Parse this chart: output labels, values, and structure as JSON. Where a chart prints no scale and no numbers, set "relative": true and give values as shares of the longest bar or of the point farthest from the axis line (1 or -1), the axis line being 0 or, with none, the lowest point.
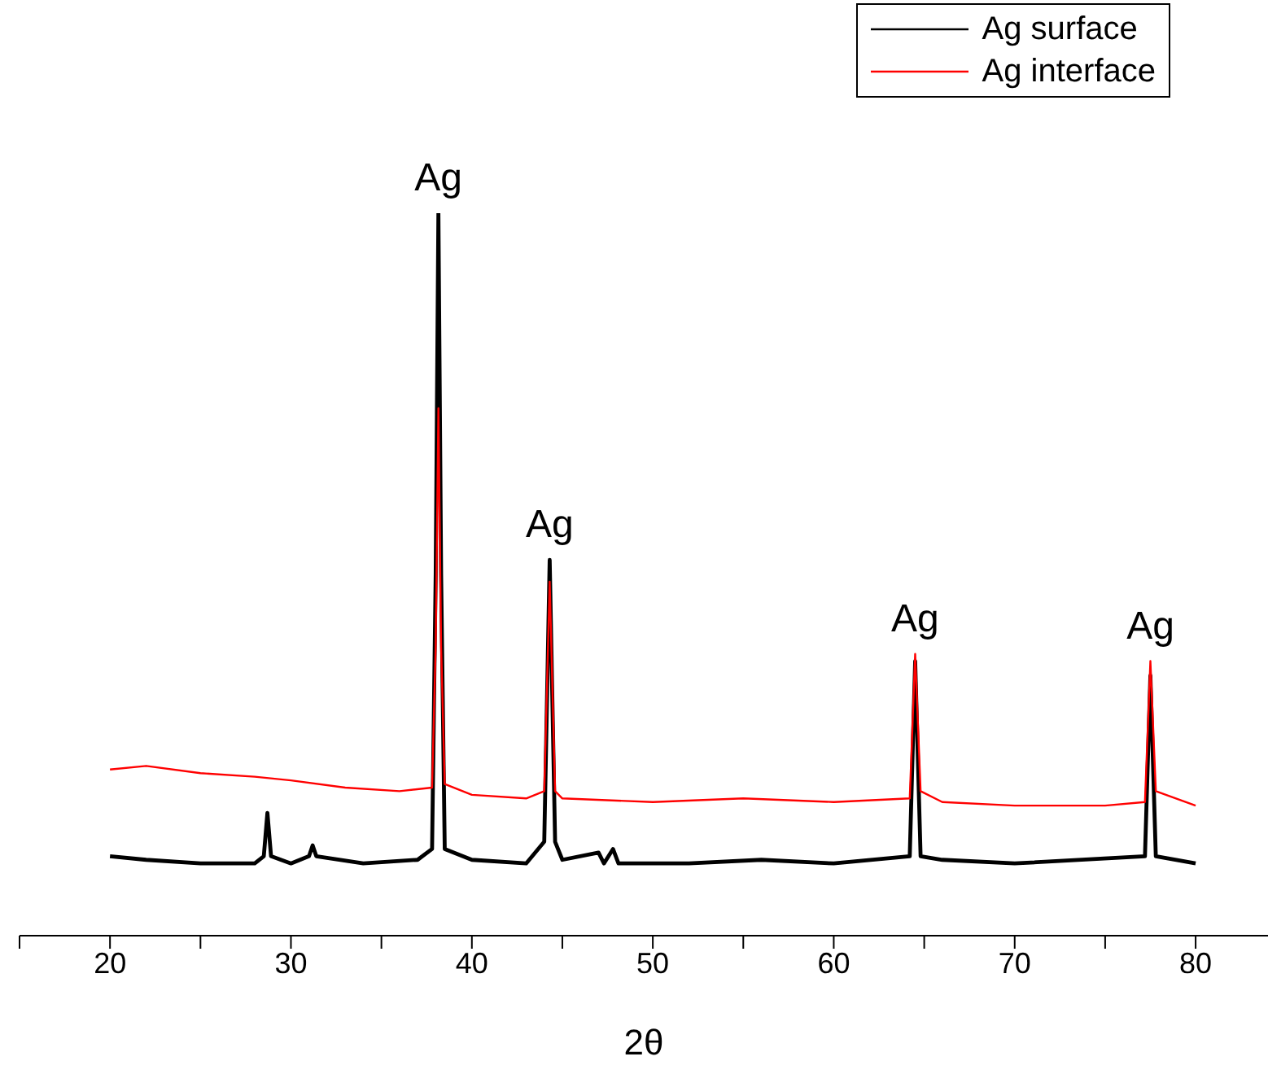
{
  "chart_data": {
    "type": "line",
    "xlabel": "2θ",
    "relative": true,
    "xlim": [
      15,
      84
    ],
    "xticks": [
      {
        "value": 15,
        "label": null
      },
      20,
      {
        "value": 25,
        "label": null
      },
      30,
      {
        "value": 35,
        "label": null
      },
      40,
      {
        "value": 45,
        "label": null
      },
      50,
      {
        "value": 55,
        "label": null
      },
      60,
      {
        "value": 65,
        "label": null
      },
      70,
      {
        "value": 75,
        "label": null
      },
      80
    ],
    "legend": "top right",
    "line_style": "solid",
    "series": [
      {
        "name": "Ag surface",
        "color": "#000000",
        "x": [
          20,
          22,
          25,
          28,
          28.5,
          28.7,
          28.9,
          30,
          31,
          31.2,
          31.4,
          34,
          37,
          37.8,
          38,
          38.15,
          38.3,
          38.5,
          40,
          43,
          44,
          44.3,
          44.6,
          45,
          47,
          47.3,
          47.8,
          48.1,
          52,
          56,
          60,
          64.2,
          64.5,
          64.8,
          66,
          70,
          77.2,
          77.5,
          77.8,
          80
        ],
        "values": [
          0.11,
          0.105,
          0.1,
          0.1,
          0.11,
          0.17,
          0.11,
          0.1,
          0.11,
          0.125,
          0.11,
          0.1,
          0.105,
          0.12,
          0.5,
          1,
          0.5,
          0.12,
          0.105,
          0.1,
          0.13,
          0.52,
          0.13,
          0.105,
          0.115,
          0.1,
          0.12,
          0.1,
          0.1,
          0.105,
          0.1,
          0.11,
          0.38,
          0.11,
          0.105,
          0.1,
          0.11,
          0.36,
          0.11,
          0.1
        ]
      },
      {
        "name": "Ag interface",
        "color": "#ff0000",
        "x": [
          20,
          22,
          25,
          28,
          30,
          33,
          36,
          37.8,
          38,
          38.15,
          38.3,
          38.5,
          40,
          43,
          44,
          44.3,
          44.6,
          45,
          50,
          55,
          60,
          64.2,
          64.5,
          64.8,
          66,
          70,
          75,
          77.2,
          77.5,
          77.8,
          80
        ],
        "values": [
          0.23,
          0.235,
          0.225,
          0.22,
          0.215,
          0.205,
          0.2,
          0.205,
          0.4,
          0.73,
          0.4,
          0.21,
          0.195,
          0.19,
          0.2,
          0.49,
          0.2,
          0.19,
          0.185,
          0.19,
          0.185,
          0.19,
          0.39,
          0.2,
          0.185,
          0.18,
          0.18,
          0.185,
          0.38,
          0.2,
          0.18
        ]
      }
    ],
    "annotations": [
      {
        "text": "Ag",
        "x": 38.15,
        "y": 1
      },
      {
        "text": "Ag",
        "x": 44.3,
        "y": 0.52
      },
      {
        "text": "Ag",
        "x": 64.5,
        "y": 0.39
      },
      {
        "text": "Ag",
        "x": 77.5,
        "y": 0.38
      }
    ]
  }
}
